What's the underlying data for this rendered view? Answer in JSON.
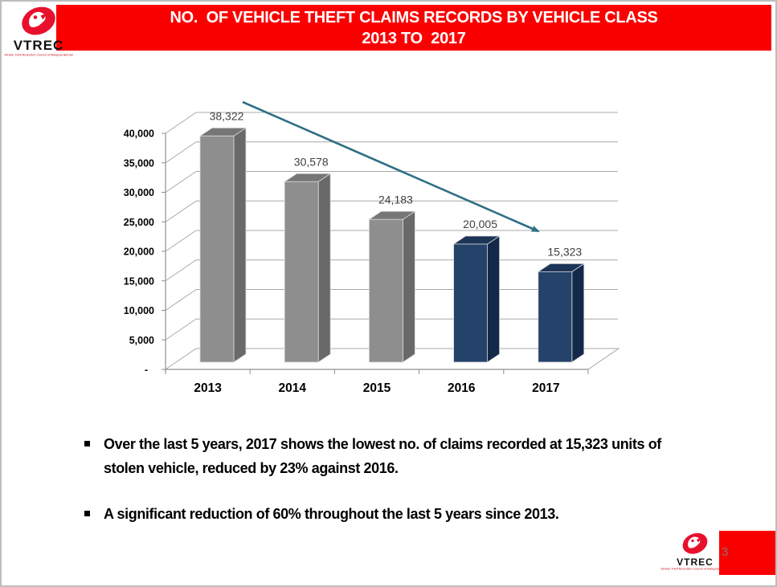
{
  "slide": {
    "header": {
      "title_line1": "NO.  OF VEHICLE THEFT CLAIMS RECORDS BY VEHICLE CLASS",
      "title_line2": "2013 TO  2017",
      "bg_color": "#FB0000",
      "text_color": "#FFFFFF"
    },
    "logo": {
      "name": "VTREC",
      "tagline": "Vehicle Theft Reduction Council of Malaysia Berhad",
      "mark_color": "#E8112D"
    },
    "bullets": [
      {
        "text": "Over the last 5 years, 2017 shows the lowest no. of claims recorded at 15,323 units of stolen vehicle, reduced by 23% against 2016."
      },
      {
        "text": "A significant reduction of 60% throughout the last 5 years since 2013."
      }
    ],
    "page_number": "3"
  },
  "chart_data": {
    "type": "bar",
    "projection": "3d-column",
    "title": "NO. OF VEHICLE THEFT CLAIMS RECORDS BY VEHICLE CLASS 2013 TO 2017",
    "categories": [
      "2013",
      "2014",
      "2015",
      "2016",
      "2017"
    ],
    "values": [
      38322,
      30578,
      24183,
      20005,
      15323
    ],
    "data_labels": [
      "38,322",
      "30,578",
      "24,183",
      "20,005",
      "15,323"
    ],
    "xlabel": "",
    "ylabel": "",
    "ylim": [
      0,
      40000
    ],
    "ytick_step": 5000,
    "ytick_labels": [
      "-",
      "5,000",
      "10,000",
      "15,000",
      "20,000",
      "25,000",
      "30,000",
      "35,000",
      "40,000"
    ],
    "grid": true,
    "legend": "none",
    "bar_palette_keys": [
      "gray",
      "gray",
      "gray",
      "navy",
      "navy"
    ],
    "palettes": {
      "gray": {
        "front": "#8E8E8E",
        "top": "#767676",
        "side": "#696969"
      },
      "navy": {
        "front": "#25436A",
        "top": "#1C3456",
        "side": "#14294A"
      }
    },
    "annotation": {
      "type": "trend-arrow-down",
      "color": "#2E6F83"
    },
    "axis_color": "#8F8F8F",
    "grid_color": "#A8A8A8",
    "label_color": "#3F3F3F"
  }
}
